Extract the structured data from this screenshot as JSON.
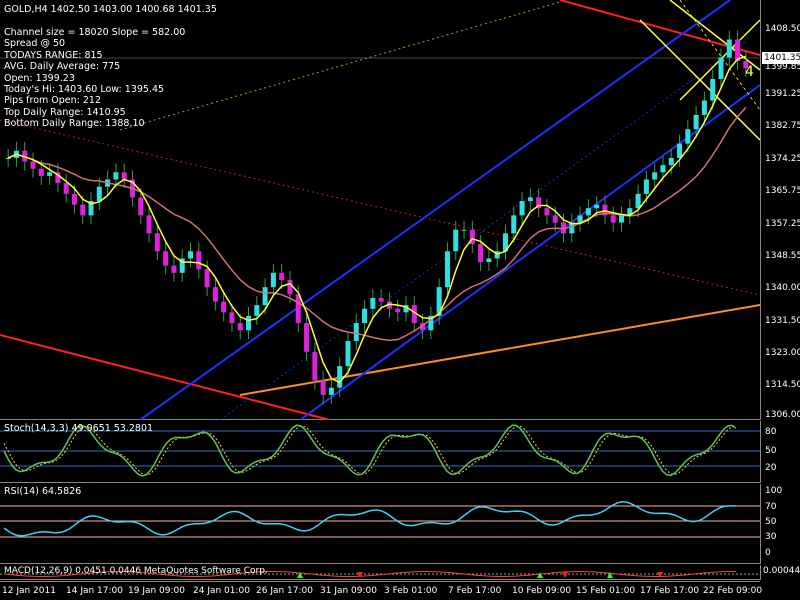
{
  "header": {
    "symbol_line": "GOLD,H4  1402.50 1403.00 1400.68 1401.35",
    "info_lines": [
      "Channel size = 18020 Slope = 582.00",
      "Spread @ 50",
      "TODAYS RANGE: 815",
      "AVG. Daily Average: 775",
      "Open: 1399.23",
      "Today's Hi: 1403.60  Low: 1395.45",
      "Pips from Open: 212",
      "Top Daily Range: 1410.95",
      "Bottom Daily Range: 1388.10"
    ]
  },
  "price_axis": {
    "labels": [
      "1408.50",
      "1399.85",
      "1391.25",
      "1382.75",
      "1374.25",
      "1365.75",
      "1357.25",
      "1348.55",
      "1340.00",
      "1331.50",
      "1323.00",
      "1314.50",
      "1306.00"
    ],
    "current_price": "1401.35",
    "marker": "4"
  },
  "stoch": {
    "title": "Stoch(14,3,3) 49.9651 53.2801",
    "levels": [
      "80",
      "50",
      "20"
    ]
  },
  "rsi": {
    "title": "RSI(14) 64.5826",
    "levels": [
      "100",
      "70",
      "50",
      "30",
      "0"
    ]
  },
  "macd": {
    "title": "MACD(12,26,9) 0.0451 0.0446 MetaQuotes Software Corp.",
    "level": "0.00044"
  },
  "time_axis": {
    "labels": [
      "12 Jan 2011",
      "14 Jan 17:00",
      "19 Jan 09:00",
      "24 Jan 01:00",
      "26 Jan 17:00",
      "31 Jan 09:00",
      "3 Feb 01:00",
      "7 Feb 17:00",
      "10 Feb 09:00",
      "15 Feb 01:00",
      "17 Feb 17:00",
      "22 Feb 09:00"
    ]
  },
  "chart_data": {
    "type": "candlestick",
    "ylim": [
      1303,
      1420
    ],
    "close_series": [
      1376,
      1378,
      1375,
      1373,
      1371,
      1372,
      1369,
      1366,
      1363,
      1360,
      1364,
      1368,
      1370,
      1372,
      1370,
      1365,
      1360,
      1355,
      1350,
      1346,
      1344,
      1348,
      1350,
      1345,
      1340,
      1336,
      1333,
      1330,
      1328,
      1332,
      1335,
      1340,
      1344,
      1342,
      1338,
      1330,
      1322,
      1314,
      1310,
      1312,
      1318,
      1325,
      1330,
      1334,
      1337,
      1336,
      1334,
      1333,
      1335,
      1330,
      1328,
      1332,
      1340,
      1350,
      1356,
      1356,
      1352,
      1347,
      1348,
      1350,
      1355,
      1360,
      1364,
      1365,
      1362,
      1360,
      1358,
      1355,
      1358,
      1360,
      1362,
      1363,
      1360,
      1358,
      1360,
      1362,
      1366,
      1370,
      1372,
      1374,
      1376,
      1380,
      1384,
      1388,
      1392,
      1398,
      1404,
      1409,
      1403,
      1401
    ]
  }
}
